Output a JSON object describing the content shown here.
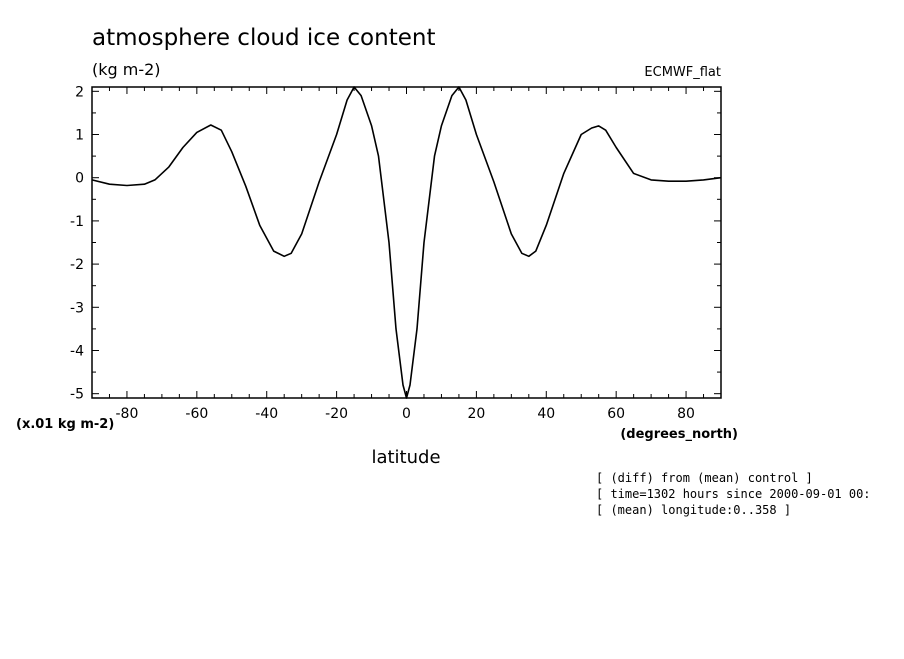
{
  "chart_data": {
    "type": "line",
    "title": "atmosphere cloud ice content",
    "units": "(kg m-2)",
    "model_label": "ECMWF_flat",
    "scale_label": "(x.01 kg m-2)",
    "xunits": "(degrees_north)",
    "xlabel": "latitude",
    "xlim": [
      -90,
      90
    ],
    "ylim": [
      -5.1,
      2.1
    ],
    "xticks": [
      -80,
      -60,
      -40,
      -20,
      0,
      20,
      40,
      60,
      80
    ],
    "xtick_labels": [
      "-80",
      "-60",
      "-40",
      "-20",
      "0",
      "20",
      "40",
      "60",
      "80"
    ],
    "yticks": [
      2,
      1,
      0,
      -1,
      -2,
      -3,
      -4,
      -5
    ],
    "ytick_labels": [
      "2",
      "1",
      "0",
      "-1",
      "-2",
      "-3",
      "-4",
      "-5"
    ],
    "grid": false,
    "series": [
      {
        "x": [
          -90,
          -85,
          -80,
          -75,
          -72,
          -68,
          -64,
          -60,
          -56,
          -53,
          -50,
          -46,
          -42,
          -38,
          -35,
          -33,
          -30,
          -25,
          -20,
          -17,
          -15,
          -13,
          -10,
          -8,
          -5,
          -3,
          -1,
          0,
          1,
          3,
          5,
          8,
          10,
          13,
          15,
          17,
          20,
          25,
          30,
          33,
          35,
          37,
          40,
          45,
          50,
          53,
          55,
          57,
          60,
          65,
          70,
          75,
          80,
          85,
          90
        ],
        "y": [
          -0.05,
          -0.15,
          -0.18,
          -0.15,
          -0.05,
          0.25,
          0.7,
          1.05,
          1.22,
          1.1,
          0.6,
          -0.2,
          -1.1,
          -1.7,
          -1.82,
          -1.75,
          -1.3,
          -0.1,
          1.0,
          1.8,
          2.1,
          1.9,
          1.2,
          0.5,
          -1.5,
          -3.5,
          -4.8,
          -5.1,
          -4.8,
          -3.5,
          -1.5,
          0.5,
          1.2,
          1.9,
          2.1,
          1.8,
          1.0,
          -0.1,
          -1.3,
          -1.75,
          -1.82,
          -1.7,
          -1.1,
          0.1,
          1.0,
          1.15,
          1.2,
          1.1,
          0.7,
          0.1,
          -0.05,
          -0.08,
          -0.08,
          -0.05,
          0.0
        ]
      }
    ]
  },
  "notes": [
    "[ (diff) from (mean) control ]",
    "[ time=1302 hours since 2000-09-01 00:",
    "[ (mean) longitude:0..358 ]"
  ]
}
